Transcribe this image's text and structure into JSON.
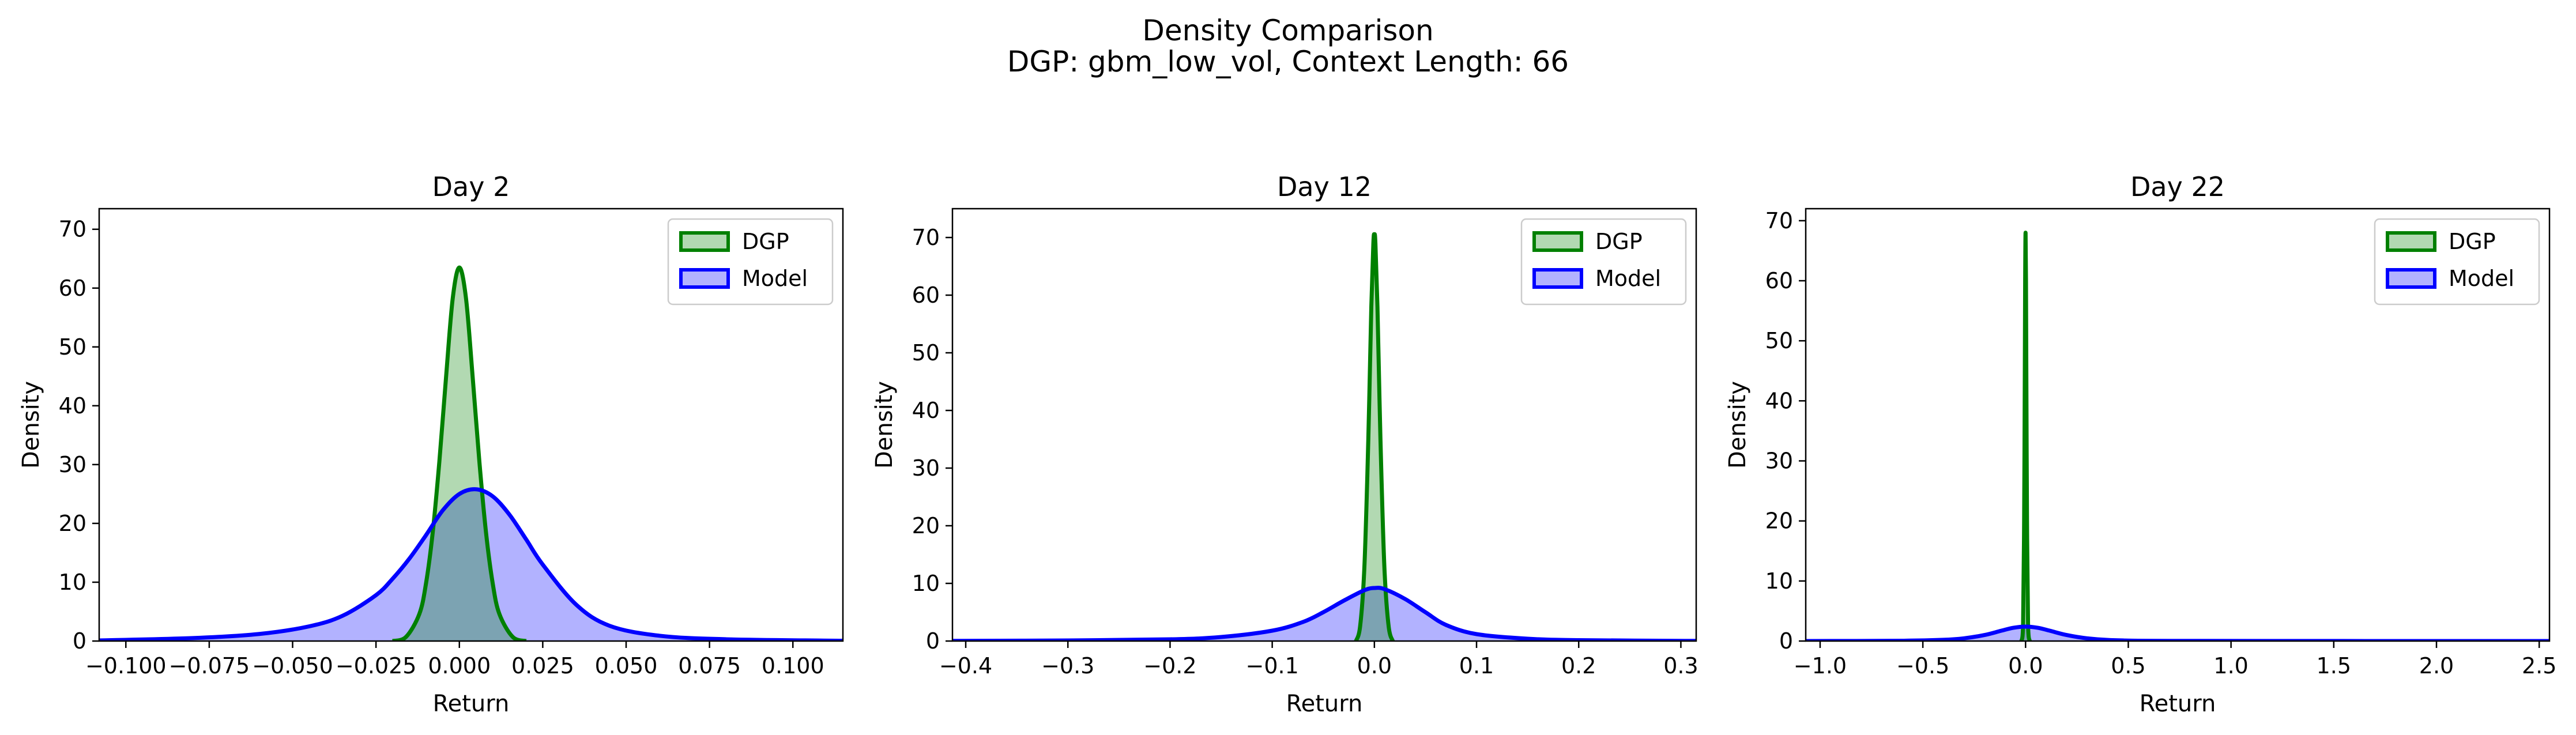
{
  "figure": {
    "title": "Density Comparison",
    "subtitle": "DGP: gbm_low_vol, Context Length: 66"
  },
  "chart_data": [
    {
      "type": "area",
      "title": "Day 2",
      "xlabel": "Return",
      "ylabel": "Density",
      "xlim": [
        -0.108,
        0.115
      ],
      "ylim": [
        0,
        73.5
      ],
      "xticks": [
        -0.1,
        -0.075,
        -0.05,
        -0.025,
        0.0,
        0.025,
        0.05,
        0.075,
        0.1
      ],
      "xtick_labels": [
        "−0.100",
        "−0.075",
        "−0.050",
        "−0.025",
        "0.000",
        "0.025",
        "0.050",
        "0.075",
        "0.100"
      ],
      "yticks": [
        0,
        10,
        20,
        30,
        40,
        50,
        60,
        70
      ],
      "ytick_labels": [
        "0",
        "10",
        "20",
        "30",
        "40",
        "50",
        "60",
        "70"
      ],
      "legend": {
        "position": "top-right",
        "entries": [
          "DGP",
          "Model"
        ]
      },
      "grid": false,
      "series": [
        {
          "name": "DGP",
          "color": "#008000",
          "fill": "#b2d8b2",
          "x": [
            -0.02,
            -0.016,
            -0.012,
            -0.01,
            -0.008,
            -0.006,
            -0.004,
            -0.002,
            0.0,
            0.002,
            0.004,
            0.006,
            0.008,
            0.01,
            0.012,
            0.016,
            0.02
          ],
          "y": [
            0,
            0.7,
            4.6,
            9.8,
            18.4,
            30.5,
            44.8,
            58.2,
            63.5,
            58.2,
            44.8,
            30.5,
            18.4,
            9.8,
            4.6,
            0.7,
            0
          ]
        },
        {
          "name": "Model",
          "color": "#0000ff",
          "fill": "#b2b2ff",
          "x": [
            -0.108,
            -0.08,
            -0.06,
            -0.045,
            -0.035,
            -0.025,
            -0.02,
            -0.015,
            -0.01,
            -0.005,
            0.0,
            0.005,
            0.01,
            0.015,
            0.02,
            0.025,
            0.035,
            0.045,
            0.06,
            0.08,
            0.115
          ],
          "y": [
            0.1,
            0.5,
            1.2,
            2.5,
            4.3,
            7.8,
            10.6,
            14.0,
            18.0,
            22.2,
            25.0,
            25.8,
            24.6,
            21.5,
            17.3,
            13.0,
            6.2,
            2.6,
            0.9,
            0.3,
            0.05
          ]
        }
      ]
    },
    {
      "type": "area",
      "title": "Day 12",
      "xlabel": "Return",
      "ylabel": "Density",
      "xlim": [
        -0.413,
        0.315
      ],
      "ylim": [
        0,
        75
      ],
      "xticks": [
        -0.4,
        -0.3,
        -0.2,
        -0.1,
        0.0,
        0.1,
        0.2,
        0.3
      ],
      "xtick_labels": [
        "−0.4",
        "−0.3",
        "−0.2",
        "−0.1",
        "0.0",
        "0.1",
        "0.2",
        "0.3"
      ],
      "yticks": [
        0,
        10,
        20,
        30,
        40,
        50,
        60,
        70
      ],
      "ytick_labels": [
        "0",
        "10",
        "20",
        "30",
        "40",
        "50",
        "60",
        "70"
      ],
      "legend": {
        "position": "top-right",
        "entries": [
          "DGP",
          "Model"
        ]
      },
      "grid": false,
      "series": [
        {
          "name": "DGP",
          "color": "#008000",
          "fill": "#b2d8b2",
          "x": [
            -0.018,
            -0.014,
            -0.01,
            -0.007,
            -0.005,
            -0.003,
            -0.001,
            0.0,
            0.001,
            0.003,
            0.005,
            0.007,
            0.01,
            0.014,
            0.018
          ],
          "y": [
            0,
            2.5,
            12.0,
            28.0,
            42.0,
            58.0,
            69.0,
            70.5,
            69.0,
            58.0,
            42.0,
            28.0,
            12.0,
            2.5,
            0
          ]
        },
        {
          "name": "Model",
          "color": "#0000ff",
          "fill": "#b2b2ff",
          "x": [
            -0.413,
            -0.3,
            -0.2,
            -0.15,
            -0.1,
            -0.07,
            -0.05,
            -0.03,
            -0.01,
            0.0,
            0.01,
            0.03,
            0.05,
            0.07,
            0.1,
            0.15,
            0.2,
            0.315
          ],
          "y": [
            0.02,
            0.1,
            0.3,
            0.7,
            1.8,
            3.3,
            5.0,
            7.0,
            8.8,
            9.2,
            9.0,
            7.3,
            5.0,
            2.8,
            1.2,
            0.4,
            0.15,
            0.02
          ]
        }
      ]
    },
    {
      "type": "area",
      "title": "Day 22",
      "xlabel": "Return",
      "ylabel": "Density",
      "xlim": [
        -1.07,
        2.55
      ],
      "ylim": [
        0,
        72
      ],
      "xticks": [
        -1.0,
        -0.5,
        0.0,
        0.5,
        1.0,
        1.5,
        2.0,
        2.5
      ],
      "xtick_labels": [
        "−1.0",
        "−0.5",
        "0.0",
        "0.5",
        "1.0",
        "1.5",
        "2.0",
        "2.5"
      ],
      "yticks": [
        0,
        10,
        20,
        30,
        40,
        50,
        60,
        70
      ],
      "ytick_labels": [
        "0",
        "10",
        "20",
        "30",
        "40",
        "50",
        "60",
        "70"
      ],
      "legend": {
        "position": "top-right",
        "entries": [
          "DGP",
          "Model"
        ]
      },
      "grid": false,
      "series": [
        {
          "name": "DGP",
          "color": "#008000",
          "fill": "#b2d8b2",
          "x": [
            -0.02,
            -0.012,
            -0.007,
            -0.004,
            -0.002,
            0.0,
            0.002,
            0.004,
            0.007,
            0.012,
            0.02
          ],
          "y": [
            0,
            3.0,
            20.0,
            42.0,
            60.0,
            68.0,
            60.0,
            42.0,
            20.0,
            3.0,
            0
          ]
        },
        {
          "name": "Model",
          "color": "#0000ff",
          "fill": "#b2b2ff",
          "x": [
            -1.07,
            -0.6,
            -0.4,
            -0.3,
            -0.2,
            -0.12,
            -0.06,
            0.0,
            0.06,
            0.12,
            0.2,
            0.3,
            0.45,
            0.8,
            2.55
          ],
          "y": [
            0.0,
            0.05,
            0.2,
            0.45,
            1.0,
            1.7,
            2.2,
            2.4,
            2.2,
            1.7,
            1.0,
            0.45,
            0.12,
            0.02,
            0.0
          ]
        }
      ]
    }
  ]
}
